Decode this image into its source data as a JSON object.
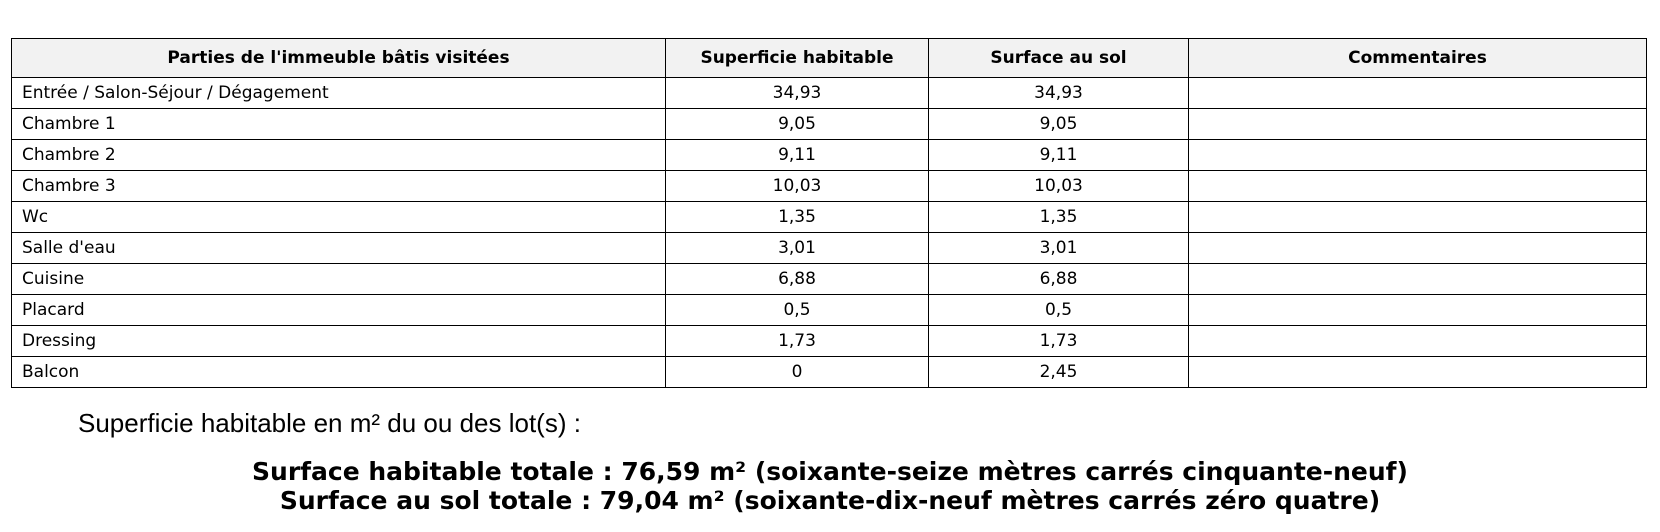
{
  "table": {
    "header": [
      "Parties de l'immeuble bâtis visitées",
      "Superficie habitable",
      "Surface au sol",
      "Commentaires"
    ],
    "rows": [
      [
        "Entrée / Salon-Séjour / Dégagement",
        "34,93",
        "34,93"
      ],
      [
        "Chambre 1",
        "9,05",
        "9,05"
      ],
      [
        "Chambre 2",
        "9,11",
        "9,11"
      ],
      [
        "Chambre 3",
        "10,03",
        "10,03"
      ],
      [
        "Wc",
        "1,35",
        "1,35"
      ],
      [
        "Salle d'eau",
        "3,01",
        "3,01"
      ],
      [
        "Cuisine",
        "6,88",
        "6,88"
      ],
      [
        "Placard",
        "0,5",
        "0,5"
      ],
      [
        "Dressing",
        "1,73",
        "1,73"
      ],
      [
        "Balcon",
        "0",
        "2,45"
      ]
    ]
  },
  "summary": {
    "intro": "Superficie habitable en m² du ou des lot(s) :",
    "total_habitable": "Surface habitable totale : 76,59 m² (soixante-seize mètres carrés cinquante-neuf)",
    "total_sol": "Surface au sol totale : 79,04 m² (soixante-dix-neuf mètres carrés zéro quatre)"
  }
}
